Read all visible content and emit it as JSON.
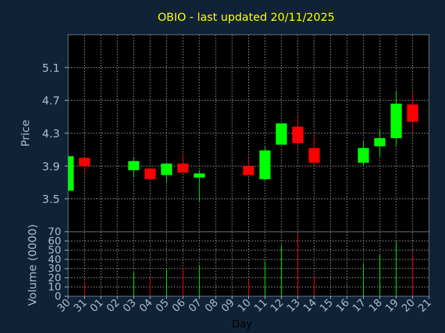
{
  "chart_data": {
    "type": "candlestick",
    "title": "OBIO - last updated 20/11/2025",
    "xlabel": "Day",
    "price_panel": {
      "ylabel": "Price",
      "ylim": [
        3.1,
        5.5
      ],
      "yticks": [
        "3.5",
        "3.9",
        "4.3",
        "4.7",
        "5.1"
      ],
      "grid": true
    },
    "volume_panel": {
      "ylabel": "Volume (0000)",
      "ylim": [
        0,
        70
      ],
      "yticks": [
        "0",
        "10",
        "20",
        "30",
        "40",
        "50",
        "60",
        "70"
      ],
      "grid": true
    },
    "x_tick_labels": [
      "30",
      "31",
      "01",
      "02",
      "03",
      "04",
      "05",
      "06",
      "07",
      "08",
      "09",
      "10",
      "11",
      "12",
      "13",
      "14",
      "15",
      "16",
      "17",
      "18",
      "19",
      "20",
      "21"
    ],
    "up_color": "#00ff00",
    "down_color": "#ff0000",
    "candles": [
      {
        "day": "30",
        "open": 3.6,
        "close": 4.02,
        "high": 4.02,
        "low": 3.6,
        "volume": 0
      },
      {
        "day": "31",
        "open": 4.0,
        "close": 3.9,
        "high": 4.0,
        "low": 3.8,
        "volume": 16
      },
      {
        "day": "03",
        "open": 3.85,
        "close": 3.96,
        "high": 4.0,
        "low": 3.76,
        "volume": 26
      },
      {
        "day": "04",
        "open": 3.87,
        "close": 3.74,
        "high": 3.87,
        "low": 3.74,
        "volume": 20
      },
      {
        "day": "05",
        "open": 3.79,
        "close": 3.93,
        "high": 3.93,
        "low": 3.7,
        "volume": 29
      },
      {
        "day": "06",
        "open": 3.93,
        "close": 3.82,
        "high": 4.05,
        "low": 3.82,
        "volume": 31
      },
      {
        "day": "07",
        "open": 3.76,
        "close": 3.81,
        "high": 3.85,
        "low": 3.47,
        "volume": 34
      },
      {
        "day": "10",
        "open": 3.9,
        "close": 3.79,
        "high": 4.0,
        "low": 3.79,
        "volume": 17
      },
      {
        "day": "11",
        "open": 3.74,
        "close": 4.09,
        "high": 4.13,
        "low": 3.72,
        "volume": 38
      },
      {
        "day": "12",
        "open": 4.16,
        "close": 4.42,
        "high": 4.42,
        "low": 4.16,
        "volume": 56
      },
      {
        "day": "13",
        "open": 4.38,
        "close": 4.18,
        "high": 4.5,
        "low": 4.14,
        "volume": 68
      },
      {
        "day": "14",
        "open": 4.12,
        "close": 3.94,
        "high": 4.26,
        "low": 3.9,
        "volume": 21
      },
      {
        "day": "17",
        "open": 3.94,
        "close": 4.12,
        "high": 4.2,
        "low": 3.9,
        "volume": 35
      },
      {
        "day": "18",
        "open": 4.14,
        "close": 4.24,
        "high": 4.35,
        "low": 4.02,
        "volume": 45
      },
      {
        "day": "19",
        "open": 4.24,
        "close": 4.66,
        "high": 4.81,
        "low": 4.15,
        "volume": 59
      },
      {
        "day": "20",
        "open": 4.65,
        "close": 4.44,
        "high": 4.82,
        "low": 4.31,
        "volume": 47
      }
    ]
  }
}
